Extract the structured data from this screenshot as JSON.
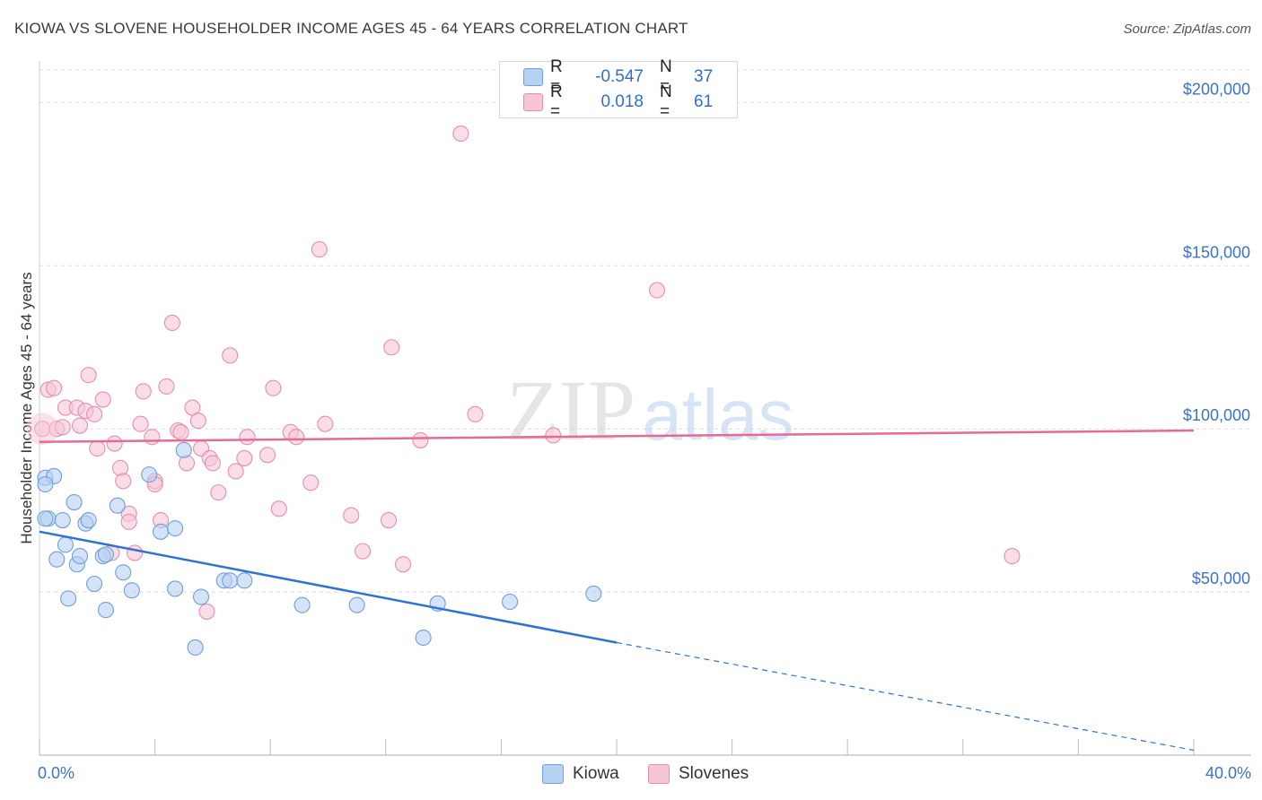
{
  "title": "KIOWA VS SLOVENE HOUSEHOLDER INCOME AGES 45 - 64 YEARS CORRELATION CHART",
  "source": "Source: ZipAtlas.com",
  "watermark": {
    "zip": "ZIP",
    "atlas": "atlas"
  },
  "legend_top": {
    "rows": [
      {
        "r_label": "R =",
        "r_value": "-0.547",
        "n_label": "N =",
        "n_value": "37",
        "color": "#a9c8f0"
      },
      {
        "r_label": "R =",
        "r_value": "0.018",
        "n_label": "N =",
        "n_value": "61",
        "color": "#f6b8cb"
      }
    ]
  },
  "legend_bottom": {
    "kiowa": "Kiowa",
    "slovenes": "Slovenes"
  },
  "colors": {
    "kiowa_fill": "#b7d1f2",
    "kiowa_stroke": "#6f9fdc",
    "kiowa_line": "#2f72d2",
    "slovenes_fill": "#f7c6d5",
    "slovenes_stroke": "#e58fab",
    "slovenes_line": "#e46b95",
    "tick_text": "#3b73c9",
    "grid": "#dcdcdc"
  },
  "chart_data": {
    "type": "scatter",
    "title": "KIOWA VS SLOVENE HOUSEHOLDER INCOME AGES 45 - 64 YEARS CORRELATION CHART",
    "xlabel": "",
    "ylabel": "Householder Income Ages 45 - 64 years",
    "xlim": [
      0,
      40
    ],
    "ylim": [
      0,
      210000
    ],
    "x_tick_labels": [
      "0.0%",
      "40.0%"
    ],
    "y_ticks": [
      50000,
      100000,
      150000,
      200000
    ],
    "y_tick_labels": [
      "$50,000",
      "$100,000",
      "$150,000",
      "$200,000"
    ],
    "grid": true,
    "legend_position": "top-center",
    "series": [
      {
        "name": "Kiowa",
        "points": [
          [
            0.2,
            85000
          ],
          [
            0.5,
            85500
          ],
          [
            0.2,
            83000
          ],
          [
            0.3,
            72500
          ],
          [
            0.8,
            72000
          ],
          [
            1.2,
            77500
          ],
          [
            1.6,
            71000
          ],
          [
            1.7,
            72000
          ],
          [
            2.7,
            76500
          ],
          [
            0.9,
            64500
          ],
          [
            0.6,
            60000
          ],
          [
            1.3,
            58500
          ],
          [
            1.4,
            61000
          ],
          [
            2.2,
            61000
          ],
          [
            2.3,
            61500
          ],
          [
            2.9,
            56000
          ],
          [
            1.9,
            52500
          ],
          [
            3.2,
            50500
          ],
          [
            1.0,
            48000
          ],
          [
            2.3,
            44500
          ],
          [
            3.8,
            86000
          ],
          [
            5.0,
            93500
          ],
          [
            4.2,
            68500
          ],
          [
            4.7,
            69500
          ],
          [
            4.7,
            51000
          ],
          [
            5.6,
            48500
          ],
          [
            6.4,
            53500
          ],
          [
            6.6,
            53500
          ],
          [
            7.1,
            53500
          ],
          [
            9.1,
            46000
          ],
          [
            11.0,
            46000
          ],
          [
            13.8,
            46500
          ],
          [
            16.3,
            47000
          ],
          [
            19.2,
            49500
          ],
          [
            5.4,
            33000
          ],
          [
            13.3,
            36000
          ],
          [
            0.2,
            72500
          ]
        ]
      },
      {
        "name": "Slovenes",
        "points": [
          [
            0.1,
            100000
          ],
          [
            0.3,
            112000
          ],
          [
            0.5,
            112500
          ],
          [
            0.6,
            100000
          ],
          [
            0.8,
            100500
          ],
          [
            0.9,
            106500
          ],
          [
            1.3,
            106500
          ],
          [
            1.4,
            101000
          ],
          [
            1.6,
            105500
          ],
          [
            1.7,
            116500
          ],
          [
            1.9,
            104500
          ],
          [
            2.0,
            94000
          ],
          [
            2.2,
            109000
          ],
          [
            2.6,
            95500
          ],
          [
            2.8,
            88000
          ],
          [
            2.9,
            84000
          ],
          [
            3.1,
            74000
          ],
          [
            3.1,
            71500
          ],
          [
            3.3,
            62000
          ],
          [
            2.5,
            62000
          ],
          [
            3.5,
            101500
          ],
          [
            3.6,
            111500
          ],
          [
            3.9,
            97500
          ],
          [
            4.0,
            84000
          ],
          [
            4.0,
            83000
          ],
          [
            4.2,
            72000
          ],
          [
            4.4,
            113000
          ],
          [
            4.6,
            132500
          ],
          [
            4.8,
            99500
          ],
          [
            4.9,
            99000
          ],
          [
            5.1,
            89500
          ],
          [
            5.3,
            106500
          ],
          [
            5.5,
            102500
          ],
          [
            5.6,
            94000
          ],
          [
            5.9,
            91000
          ],
          [
            6.0,
            89500
          ],
          [
            6.2,
            80500
          ],
          [
            6.6,
            122500
          ],
          [
            6.8,
            87000
          ],
          [
            7.1,
            91000
          ],
          [
            7.2,
            97500
          ],
          [
            7.9,
            92000
          ],
          [
            8.1,
            112500
          ],
          [
            8.3,
            75500
          ],
          [
            8.7,
            99000
          ],
          [
            8.9,
            97500
          ],
          [
            9.4,
            83500
          ],
          [
            9.7,
            155000
          ],
          [
            9.9,
            101500
          ],
          [
            10.8,
            73500
          ],
          [
            11.2,
            62500
          ],
          [
            12.1,
            72000
          ],
          [
            12.2,
            125000
          ],
          [
            12.6,
            58500
          ],
          [
            13.2,
            96500
          ],
          [
            14.6,
            190500
          ],
          [
            15.1,
            104500
          ],
          [
            17.8,
            98000
          ],
          [
            21.4,
            142500
          ],
          [
            33.7,
            61000
          ],
          [
            5.8,
            44000
          ]
        ]
      }
    ],
    "trend_lines": [
      {
        "name": "Kiowa",
        "x1": 0,
        "y1": 68500,
        "x2": 20,
        "y2": 34500,
        "dashed_to_x": 40,
        "dashed_to_y": 1500
      },
      {
        "name": "Slovenes",
        "x1": 0,
        "y1": 96000,
        "x2": 40,
        "y2": 99500
      }
    ]
  }
}
